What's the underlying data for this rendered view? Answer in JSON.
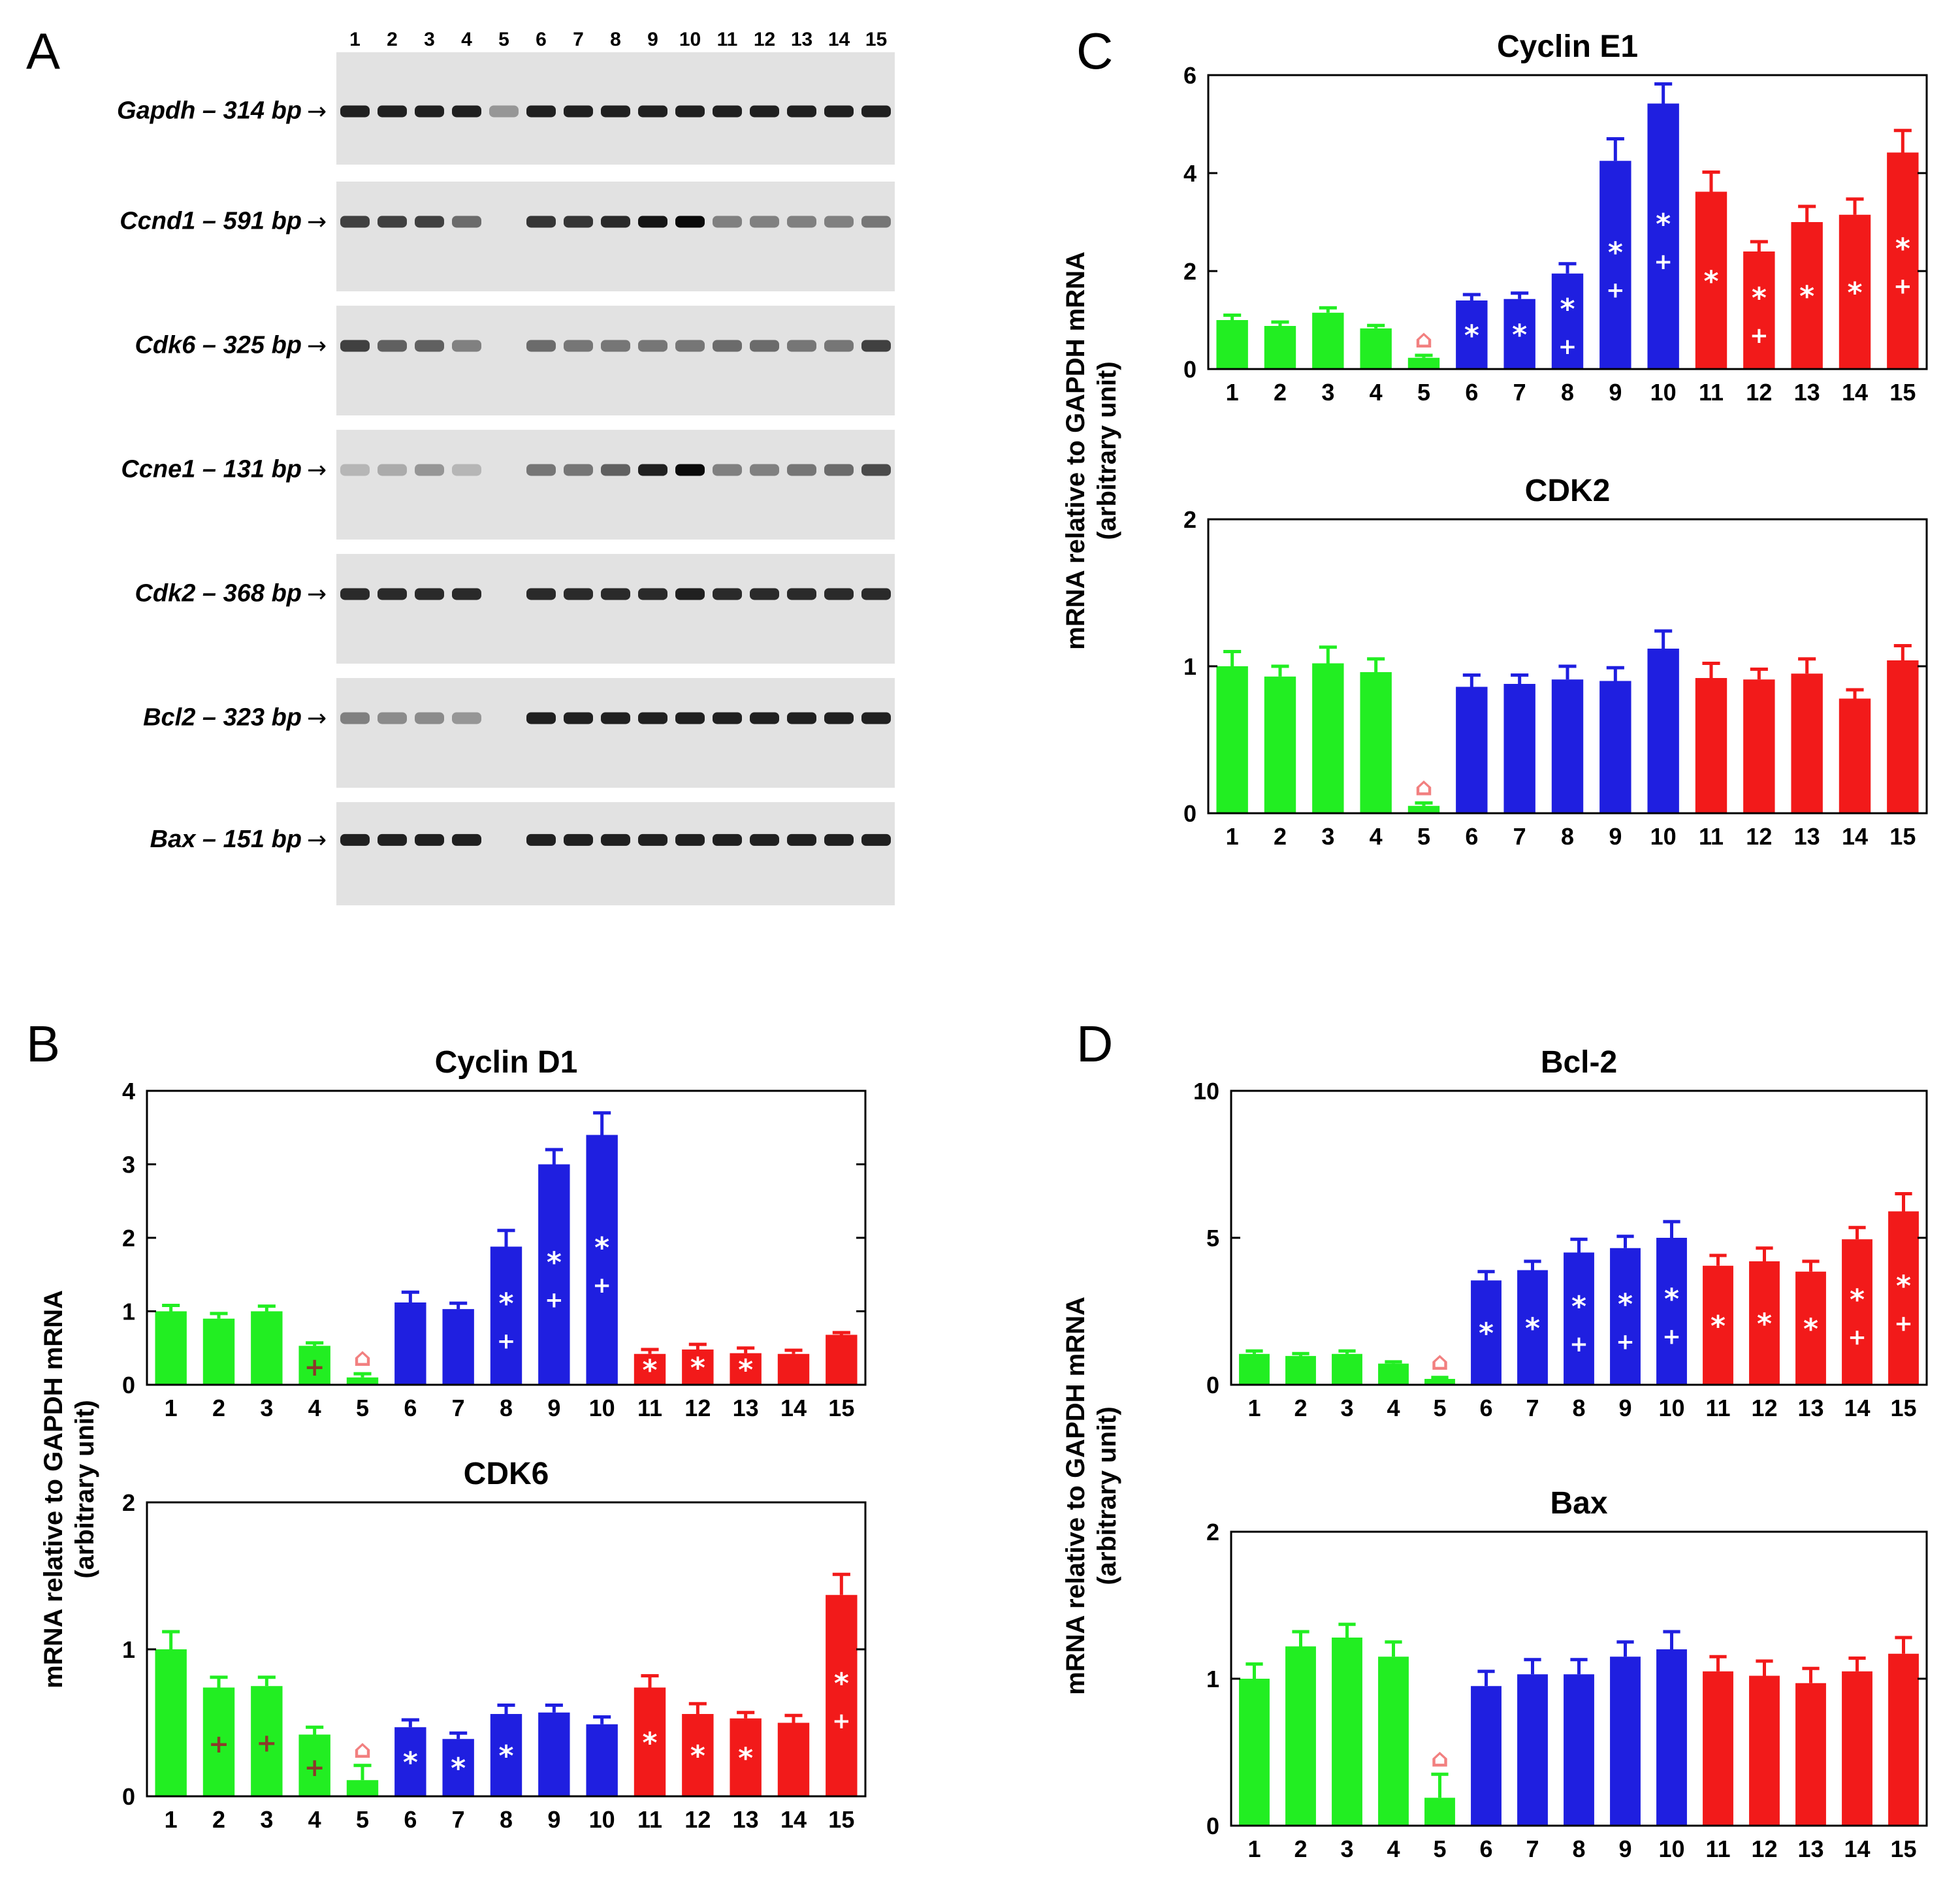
{
  "colors": {
    "green": "#22ee22",
    "blue": "#1f1fe0",
    "red": "#f21a1a",
    "marker_red": "#f28080",
    "marker_brown": "#8b3a2a",
    "white": "#ffffff"
  },
  "panel_labels": {
    "a": "A",
    "b": "B",
    "c": "C",
    "d": "D"
  },
  "gel": {
    "lanes": [
      "1",
      "2",
      "3",
      "4",
      "5",
      "6",
      "7",
      "8",
      "9",
      "10",
      "11",
      "12",
      "13",
      "14",
      "15"
    ],
    "genes": [
      {
        "label": "Gapdh – 314 bp",
        "intensity": [
          0.9,
          0.9,
          0.9,
          0.9,
          0.35,
          0.9,
          0.9,
          0.9,
          0.9,
          0.9,
          0.9,
          0.9,
          0.9,
          0.9,
          0.9
        ]
      },
      {
        "label": "Ccnd1 – 591 bp",
        "intensity": [
          0.75,
          0.75,
          0.75,
          0.55,
          0,
          0.8,
          0.8,
          0.85,
          0.95,
          1,
          0.45,
          0.45,
          0.45,
          0.45,
          0.5
        ]
      },
      {
        "label": "Cdk6 – 325 bp",
        "intensity": [
          0.75,
          0.6,
          0.6,
          0.45,
          0,
          0.55,
          0.5,
          0.5,
          0.5,
          0.5,
          0.55,
          0.55,
          0.5,
          0.5,
          0.75
        ]
      },
      {
        "label": "Ccne1 – 131 bp",
        "intensity": [
          0.2,
          0.25,
          0.35,
          0.2,
          0,
          0.5,
          0.5,
          0.6,
          0.9,
          1,
          0.45,
          0.45,
          0.5,
          0.55,
          0.7
        ]
      },
      {
        "label": "Cdk2 – 368 bp",
        "intensity": [
          0.85,
          0.85,
          0.85,
          0.85,
          0,
          0.85,
          0.85,
          0.85,
          0.85,
          0.9,
          0.85,
          0.85,
          0.85,
          0.85,
          0.85
        ]
      },
      {
        "label": "Bcl2 – 323 bp",
        "intensity": [
          0.45,
          0.4,
          0.4,
          0.35,
          0,
          0.9,
          0.9,
          0.9,
          0.9,
          0.9,
          0.9,
          0.9,
          0.9,
          0.9,
          0.9
        ]
      },
      {
        "label": "Bax – 151 bp",
        "intensity": [
          0.9,
          0.9,
          0.9,
          0.9,
          0,
          0.9,
          0.9,
          0.9,
          0.9,
          0.9,
          0.9,
          0.9,
          0.9,
          0.9,
          0.9
        ]
      }
    ]
  },
  "ylabel_line1": "mRNA relative to GAPDH mRNA",
  "ylabel_line2": "(arbitrary unit)",
  "chart_data": [
    {
      "id": "cyclin_d1",
      "type": "bar",
      "title": "Cyclin D1",
      "categories": [
        "1",
        "2",
        "3",
        "4",
        "5",
        "6",
        "7",
        "8",
        "9",
        "10",
        "11",
        "12",
        "13",
        "14",
        "15"
      ],
      "values": [
        1.0,
        0.9,
        1.0,
        0.53,
        0.1,
        1.12,
        1.03,
        1.88,
        3.0,
        3.4,
        0.42,
        0.48,
        0.43,
        0.42,
        0.68
      ],
      "errors": [
        0.08,
        0.07,
        0.07,
        0.04,
        0.05,
        0.14,
        0.08,
        0.22,
        0.2,
        0.3,
        0.06,
        0.07,
        0.07,
        0.05,
        0.03
      ],
      "yticks": [
        "0",
        "1",
        "2",
        "3",
        "4"
      ],
      "ylim": [
        0,
        4
      ],
      "markers": [
        "",
        "",
        "",
        "+",
        "⌂",
        "",
        "",
        "*+",
        "*+",
        "*+",
        "*",
        "*",
        "*",
        "",
        ""
      ]
    },
    {
      "id": "cdk6",
      "type": "bar",
      "title": "CDK6",
      "categories": [
        "1",
        "2",
        "3",
        "4",
        "5",
        "6",
        "7",
        "8",
        "9",
        "10",
        "11",
        "12",
        "13",
        "14",
        "15"
      ],
      "values": [
        1.0,
        0.74,
        0.75,
        0.42,
        0.11,
        0.47,
        0.39,
        0.56,
        0.57,
        0.49,
        0.74,
        0.56,
        0.53,
        0.5,
        1.37
      ],
      "errors": [
        0.12,
        0.07,
        0.06,
        0.05,
        0.1,
        0.05,
        0.04,
        0.06,
        0.05,
        0.05,
        0.08,
        0.07,
        0.04,
        0.05,
        0.14
      ],
      "yticks": [
        "0",
        "1",
        "2"
      ],
      "ylim": [
        0,
        2
      ],
      "markers": [
        "",
        "+",
        "+",
        "+",
        "⌂",
        "*",
        "*",
        "*",
        "",
        "",
        "*",
        "*",
        "*",
        "",
        "*+"
      ]
    },
    {
      "id": "cyclin_e1",
      "type": "bar",
      "title": "Cyclin E1",
      "categories": [
        "1",
        "2",
        "3",
        "4",
        "5",
        "6",
        "7",
        "8",
        "9",
        "10",
        "11",
        "12",
        "13",
        "14",
        "15"
      ],
      "values": [
        1.0,
        0.88,
        1.15,
        0.83,
        0.23,
        1.4,
        1.43,
        1.95,
        4.25,
        5.42,
        3.62,
        2.4,
        3.0,
        3.15,
        4.42
      ],
      "errors": [
        0.1,
        0.08,
        0.1,
        0.06,
        0.05,
        0.12,
        0.12,
        0.2,
        0.45,
        0.4,
        0.4,
        0.2,
        0.32,
        0.32,
        0.45
      ],
      "yticks": [
        "0",
        "2",
        "4",
        "6"
      ],
      "ylim": [
        0,
        6
      ],
      "markers": [
        "",
        "",
        "",
        "",
        "⌂",
        "*",
        "*",
        "*+",
        "*+",
        "*+",
        "*",
        "*+",
        "*",
        "*",
        "*+"
      ]
    },
    {
      "id": "cdk2",
      "type": "bar",
      "title": "CDK2",
      "categories": [
        "1",
        "2",
        "3",
        "4",
        "5",
        "6",
        "7",
        "8",
        "9",
        "10",
        "11",
        "12",
        "13",
        "14",
        "15"
      ],
      "values": [
        1.0,
        0.93,
        1.02,
        0.96,
        0.05,
        0.86,
        0.88,
        0.91,
        0.9,
        1.12,
        0.92,
        0.91,
        0.95,
        0.78,
        1.04
      ],
      "errors": [
        0.1,
        0.07,
        0.11,
        0.09,
        0.02,
        0.08,
        0.06,
        0.09,
        0.09,
        0.12,
        0.1,
        0.07,
        0.1,
        0.06,
        0.1
      ],
      "yticks": [
        "0",
        "1",
        "2"
      ],
      "ylim": [
        0,
        2
      ],
      "markers": [
        "",
        "",
        "",
        "",
        "⌂",
        "",
        "",
        "",
        "",
        "",
        "",
        "",
        "",
        "",
        ""
      ]
    },
    {
      "id": "bcl2",
      "type": "bar",
      "title": "Bcl-2",
      "categories": [
        "1",
        "2",
        "3",
        "4",
        "5",
        "6",
        "7",
        "8",
        "9",
        "10",
        "11",
        "12",
        "13",
        "14",
        "15"
      ],
      "values": [
        1.05,
        0.98,
        1.05,
        0.72,
        0.2,
        3.55,
        3.9,
        4.5,
        4.65,
        5.0,
        4.05,
        4.2,
        3.85,
        4.95,
        5.9
      ],
      "errors": [
        0.1,
        0.08,
        0.1,
        0.06,
        0.05,
        0.3,
        0.3,
        0.45,
        0.4,
        0.55,
        0.35,
        0.45,
        0.35,
        0.4,
        0.6
      ],
      "yticks": [
        "0",
        "5",
        "10"
      ],
      "ylim": [
        0,
        10
      ],
      "markers": [
        "",
        "",
        "",
        "",
        "⌂",
        "*",
        "*",
        "*+",
        "*+",
        "*+",
        "*",
        "*",
        "*",
        "*+",
        "*+"
      ]
    },
    {
      "id": "bax",
      "type": "bar",
      "title": "Bax",
      "categories": [
        "1",
        "2",
        "3",
        "4",
        "5",
        "6",
        "7",
        "8",
        "9",
        "10",
        "11",
        "12",
        "13",
        "14",
        "15"
      ],
      "values": [
        1.0,
        1.22,
        1.28,
        1.15,
        0.19,
        0.95,
        1.03,
        1.03,
        1.15,
        1.2,
        1.05,
        1.02,
        0.97,
        1.05,
        1.17
      ],
      "errors": [
        0.1,
        0.1,
        0.09,
        0.1,
        0.16,
        0.1,
        0.1,
        0.1,
        0.1,
        0.12,
        0.1,
        0.1,
        0.1,
        0.09,
        0.11
      ],
      "yticks": [
        "0",
        "1",
        "2"
      ],
      "ylim": [
        0,
        2
      ],
      "markers": [
        "",
        "",
        "",
        "",
        "⌂",
        "",
        "",
        "",
        "",
        "",
        "",
        "",
        "",
        "",
        ""
      ]
    }
  ]
}
